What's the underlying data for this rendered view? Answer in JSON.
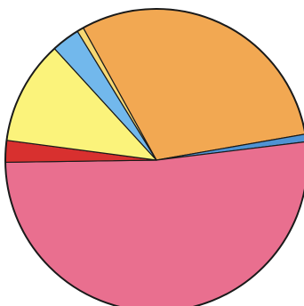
{
  "chart_data": {
    "type": "pie",
    "title": "",
    "legend": "none",
    "start_angle_deg": -119,
    "slices": [
      {
        "value": 30.0,
        "color": "#f2a852"
      },
      {
        "value": 0.8,
        "color": "#4f93d3"
      },
      {
        "value": 51.2,
        "color": "#e96f8f"
      },
      {
        "value": 2.3,
        "color": "#d8302f"
      },
      {
        "value": 11.0,
        "color": "#fbf37b"
      },
      {
        "value": 3.0,
        "color": "#72b8ec"
      },
      {
        "value": 0.7,
        "color": "#f7d873"
      }
    ]
  }
}
